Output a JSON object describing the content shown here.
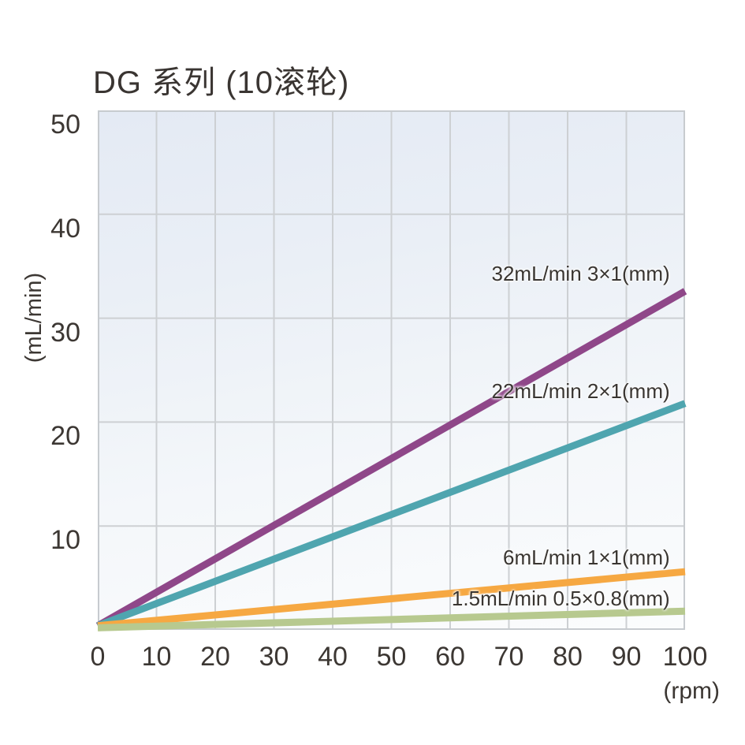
{
  "chart_data": {
    "type": "line",
    "title": "DG 系列 (10滚轮)",
    "xlabel": "(rpm)",
    "ylabel": "(mL/min)",
    "xlim": [
      0,
      100
    ],
    "ylim": [
      0,
      50
    ],
    "x_ticks": [
      0,
      10,
      20,
      30,
      40,
      50,
      60,
      70,
      80,
      90,
      100
    ],
    "y_ticks": [
      10,
      20,
      30,
      40,
      50
    ],
    "grid": true,
    "legend_position": "inline-labels-right",
    "series": [
      {
        "name": "3×1(mm)",
        "label": "32mL/min 3×1(mm)",
        "flow_at_100rpm_mlmin": 32,
        "color": "#8F4789",
        "x": [
          0,
          100
        ],
        "y": [
          0.4,
          32.6
        ],
        "label_anchor": {
          "x": 97.4,
          "y": 34.3
        }
      },
      {
        "name": "2×1(mm)",
        "label": "22mL/min 2×1(mm)",
        "flow_at_100rpm_mlmin": 22,
        "color": "#4FA5AF",
        "x": [
          0,
          100
        ],
        "y": [
          0.4,
          21.8
        ],
        "label_anchor": {
          "x": 97.4,
          "y": 23.0
        }
      },
      {
        "name": "1×1(mm)",
        "label": "6mL/min 1×1(mm)",
        "flow_at_100rpm_mlmin": 6,
        "color": "#F6A842",
        "x": [
          0,
          100
        ],
        "y": [
          0.4,
          5.6
        ],
        "label_anchor": {
          "x": 97.4,
          "y": 7.0
        }
      },
      {
        "name": "0.5×0.8(mm)",
        "label": "1.5mL/min 0.5×0.8(mm)",
        "flow_at_100rpm_mlmin": 1.5,
        "color": "#B7C98F",
        "x": [
          0,
          100
        ],
        "y": [
          0.2,
          1.8
        ],
        "label_anchor": {
          "x": 97.4,
          "y": 3.0
        }
      }
    ],
    "style": {
      "grid_color": "#CDD0D3",
      "border_color": "#C7CBCF",
      "bg_top": "#E4EAF4",
      "bg_bottom": "#FBFCFD",
      "text_color": "#3B3633",
      "line_width": 9
    }
  }
}
